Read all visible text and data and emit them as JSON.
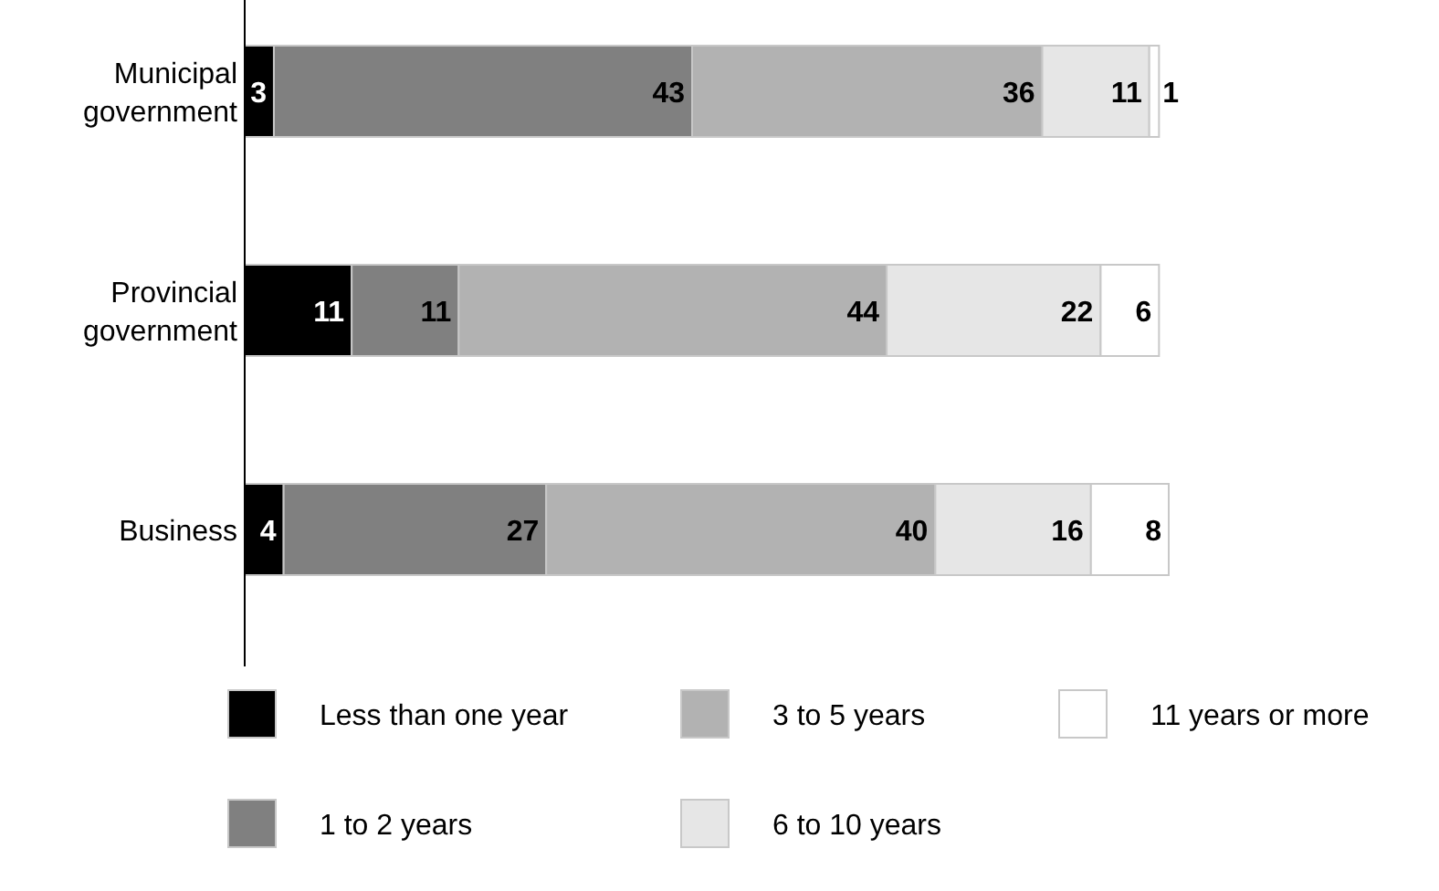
{
  "chart_data": {
    "type": "bar",
    "orientation": "horizontal",
    "stacked": true,
    "data_labels": true,
    "legend": "bottom",
    "categories": [
      "Municipal\ngovernment",
      "Provincial\ngovernment",
      "Business"
    ],
    "series": [
      {
        "name": "Less than one year",
        "color": "#000000",
        "values": [
          3,
          11,
          4
        ]
      },
      {
        "name": "1 to 2 years",
        "color": "#808080",
        "values": [
          43,
          11,
          27
        ]
      },
      {
        "name": "3 to 5 years",
        "color": "#b2b2b2",
        "values": [
          36,
          44,
          40
        ]
      },
      {
        "name": "6 to 10 years",
        "color": "#e6e6e6",
        "values": [
          11,
          22,
          16
        ]
      },
      {
        "name": "11 years or more",
        "color": "#ffffff",
        "values": [
          1,
          6,
          8
        ]
      }
    ]
  }
}
